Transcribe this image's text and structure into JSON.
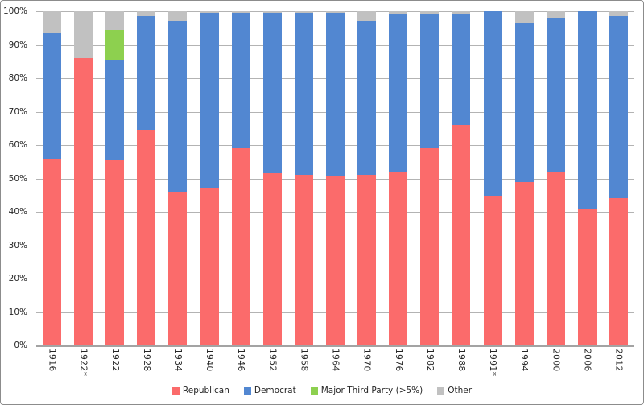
{
  "window": {
    "background": "#ffffff",
    "border_color": "#8c8c8c"
  },
  "colors": {
    "gridline": "#b3b3b3",
    "axis_line": "#a3a3a3",
    "text": "#262626",
    "republican": "#fb6b6b",
    "democrat": "#5287d1",
    "third_party": "#8dd04f",
    "other": "#c1c1c1"
  },
  "chart_data": {
    "type": "bar",
    "subtype": "100%-stacked-column",
    "title": "",
    "xlabel": "",
    "ylabel": "",
    "ylim": [
      0,
      100
    ],
    "grid": true,
    "y_tick_labels": [
      "0%",
      "10%",
      "20%",
      "30%",
      "40%",
      "50%",
      "60%",
      "70%",
      "80%",
      "90%",
      "100%"
    ],
    "categories": [
      "1916",
      "1922*",
      "1922",
      "1928",
      "1934",
      "1940",
      "1946",
      "1952",
      "1958",
      "1964",
      "1970",
      "1976",
      "1982",
      "1988",
      "1991*",
      "1994",
      "2000",
      "2006",
      "2012"
    ],
    "series": [
      {
        "name": "Republican",
        "color": "#fb6b6b",
        "values": [
          56,
          86,
          55.5,
          64.5,
          46,
          47,
          59,
          51.5,
          51,
          50.5,
          51,
          52,
          59,
          66,
          44.5,
          49,
          52,
          41,
          44
        ]
      },
      {
        "name": "Democrat",
        "color": "#5287d1",
        "values": [
          37.5,
          0,
          30,
          34,
          51,
          52.5,
          40.5,
          48,
          48.5,
          49,
          46,
          47,
          40,
          33,
          55.5,
          47.5,
          46,
          59,
          54.5
        ]
      },
      {
        "name": "Major Third Party (>5%)",
        "color": "#8dd04f",
        "values": [
          0,
          0,
          9,
          0,
          0,
          0,
          0,
          0,
          0,
          0,
          0,
          0,
          0,
          0,
          0,
          0,
          0,
          0,
          0
        ]
      },
      {
        "name": "Other",
        "color": "#c1c1c1",
        "values": [
          6.5,
          14,
          5.5,
          1.5,
          3,
          0.5,
          0.5,
          0.5,
          0.5,
          0.5,
          3,
          1,
          1,
          1,
          0,
          3.5,
          2,
          0,
          1.5
        ]
      }
    ],
    "legend_position": "bottom"
  }
}
